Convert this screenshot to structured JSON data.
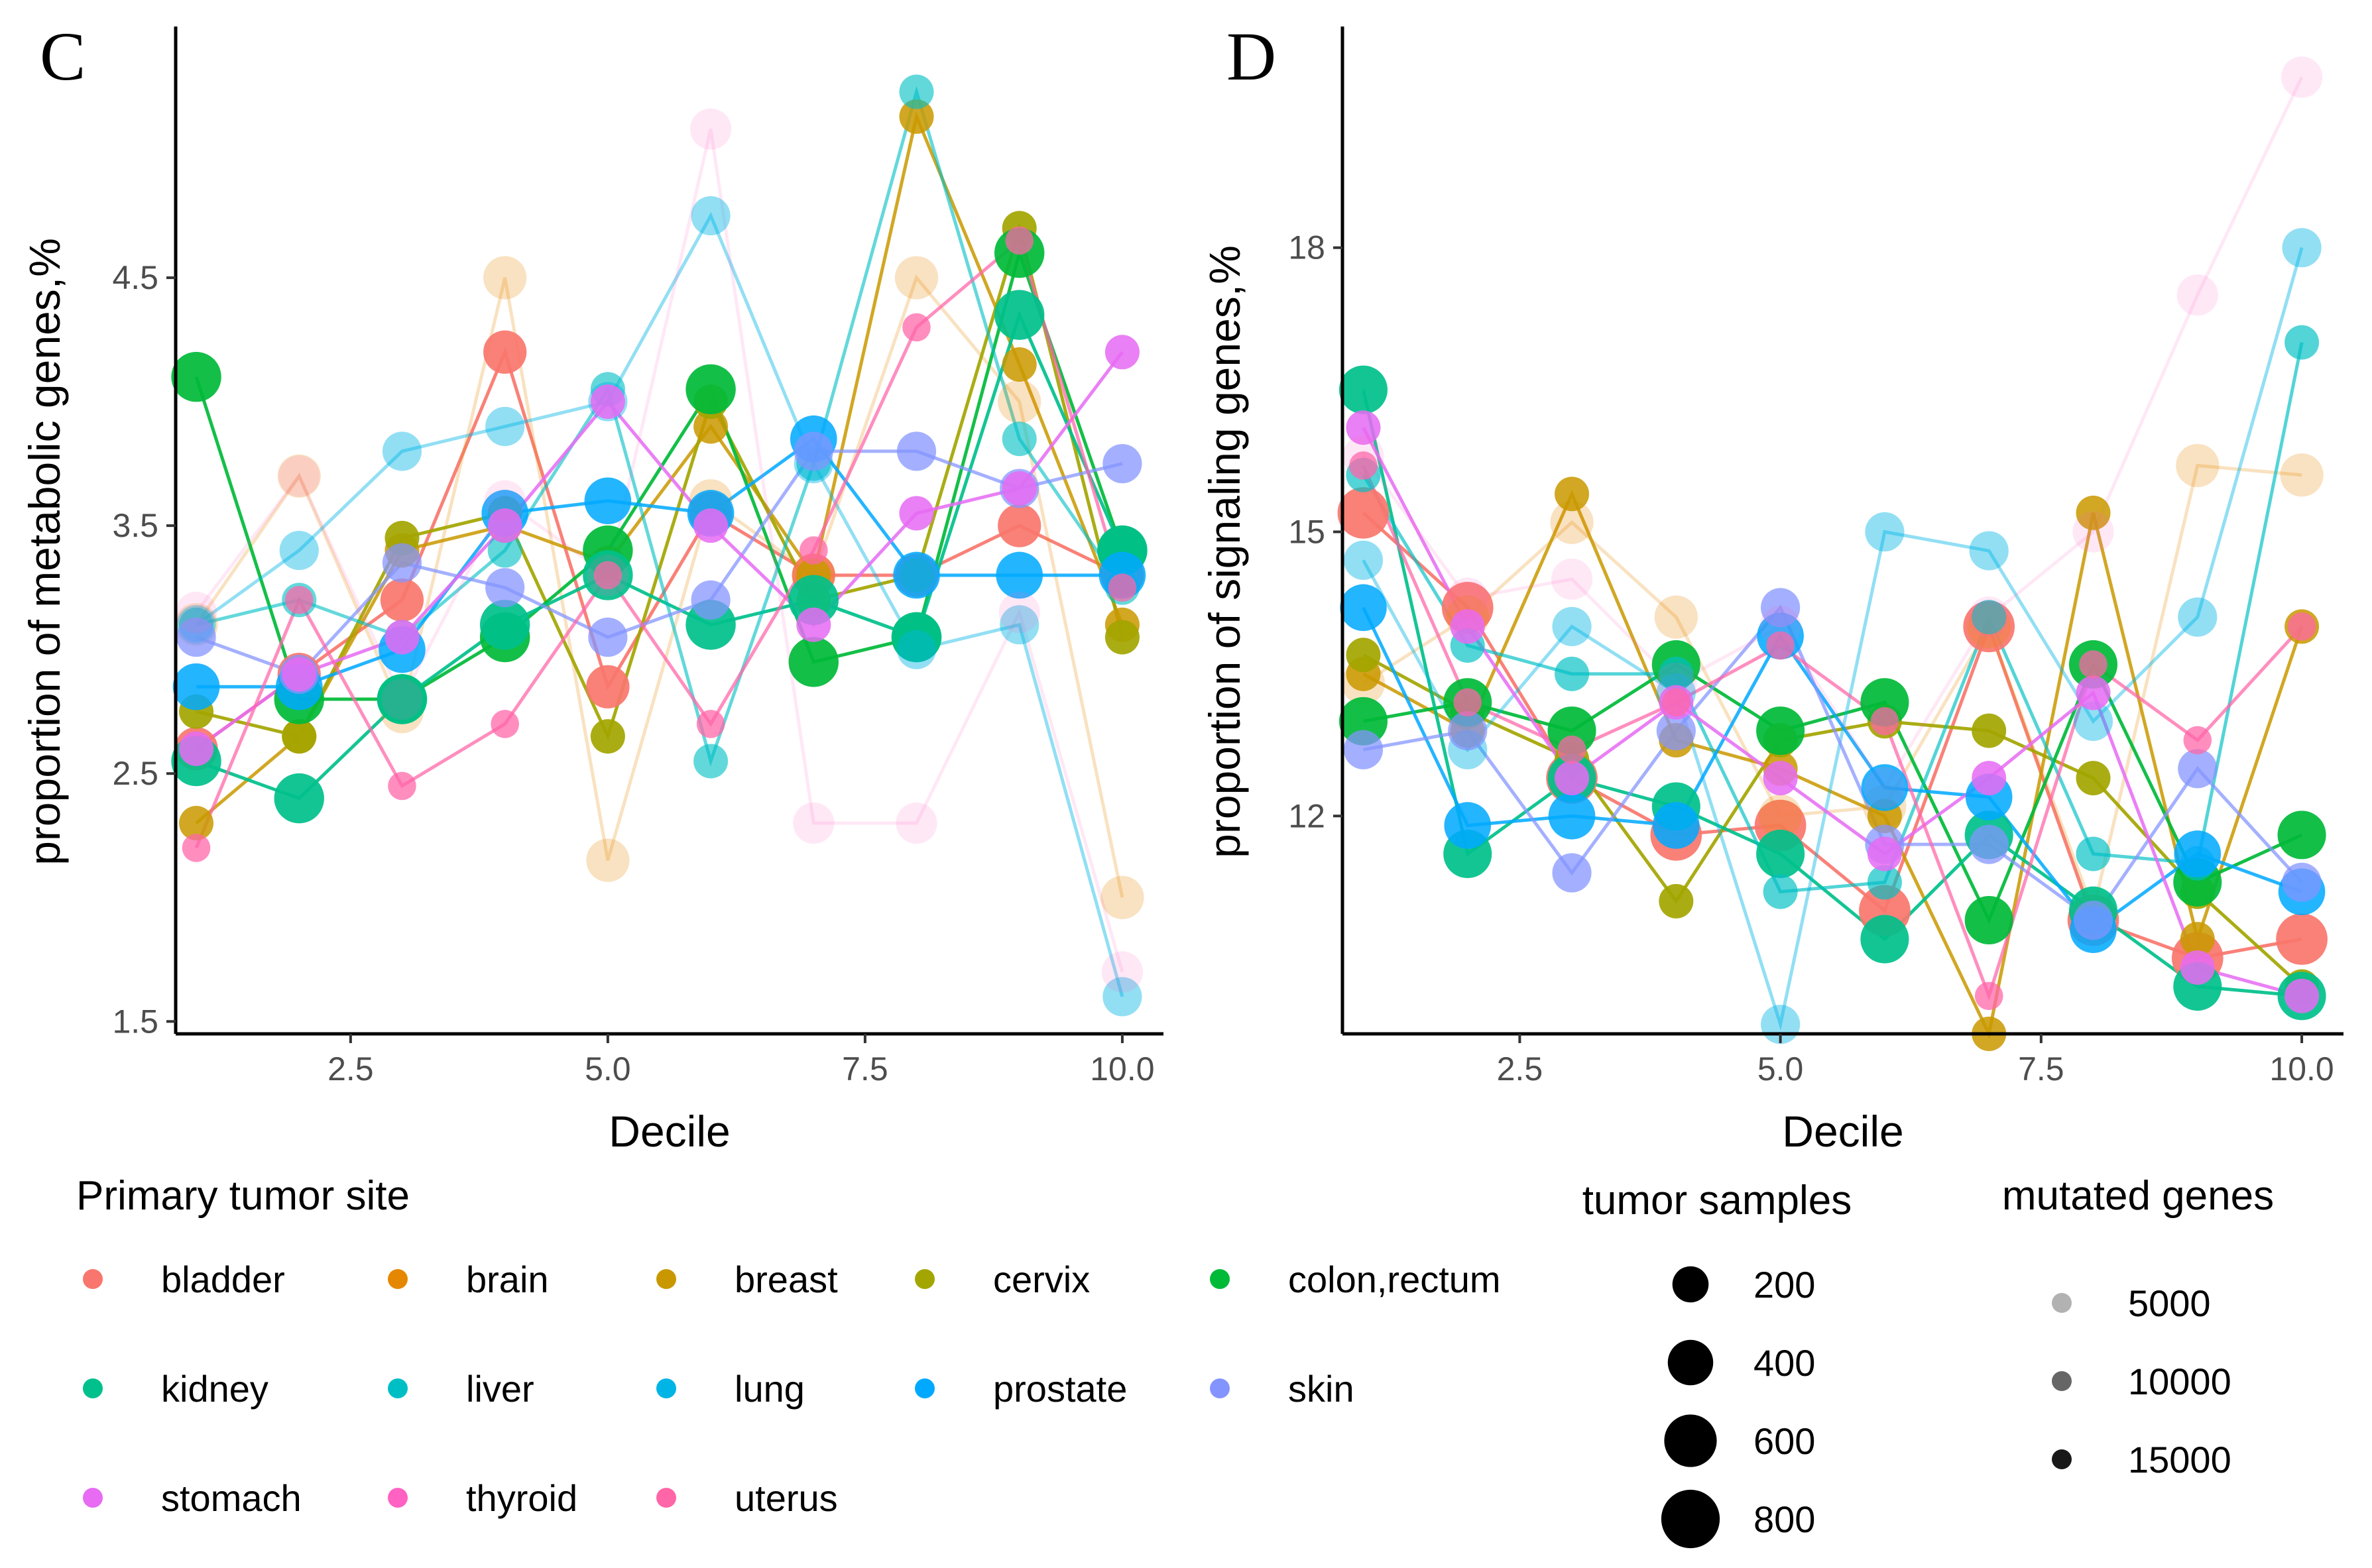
{
  "chart_data": [
    {
      "type": "scatter",
      "panel": "C",
      "xlabel": "Decile",
      "ylabel": "proportion of metabolic genes,%",
      "xlim": [
        0.8,
        10.4
      ],
      "ylim": [
        1.45,
        5.5
      ],
      "xticks": [
        2.5,
        5.0,
        7.5,
        10.0
      ],
      "xtick_labels": [
        "2.5",
        "5.0",
        "7.5",
        "10.0"
      ],
      "yticks": [
        1.5,
        2.5,
        3.5,
        4.5
      ],
      "ytick_labels": [
        "1.5",
        "2.5",
        "3.5",
        "4.5"
      ],
      "series": [
        {
          "name": "bladder",
          "values": [
            2.6,
            2.9,
            3.2,
            4.2,
            2.85,
            3.55,
            3.3,
            3.3,
            3.5,
            3.3
          ],
          "samples": 400,
          "mutated": 15000
        },
        {
          "name": "brain",
          "values": [
            3.1,
            3.7,
            2.75,
            4.5,
            2.15,
            3.6,
            3.3,
            4.5,
            4.0,
            2.0
          ],
          "samples": 400,
          "mutated": 4000
        },
        {
          "name": "breast",
          "values": [
            2.3,
            2.65,
            3.4,
            3.5,
            3.35,
            3.9,
            3.3,
            5.15,
            4.15,
            3.1
          ],
          "samples": 200,
          "mutated": 14000
        },
        {
          "name": "cervix",
          "values": [
            2.75,
            2.65,
            3.45,
            3.55,
            2.65,
            4.0,
            3.2,
            3.3,
            4.7,
            3.05
          ],
          "samples": 200,
          "mutated": 15000
        },
        {
          "name": "colon,rectum",
          "values": [
            4.1,
            2.8,
            2.8,
            3.05,
            3.4,
            4.05,
            2.95,
            3.05,
            4.6,
            3.4
          ],
          "samples": 600,
          "mutated": 15000
        },
        {
          "name": "kidney",
          "values": [
            2.55,
            2.4,
            2.8,
            3.1,
            3.3,
            3.1,
            3.2,
            3.05,
            4.35,
            3.4
          ],
          "samples": 600,
          "mutated": 15000
        },
        {
          "name": "liver",
          "values": [
            3.1,
            3.2,
            3.05,
            3.4,
            4.05,
            2.55,
            3.75,
            5.25,
            3.85,
            3.25
          ],
          "samples": 200,
          "mutated": 10000
        },
        {
          "name": "lung",
          "values": [
            3.1,
            3.4,
            3.8,
            3.9,
            4.0,
            4.75,
            3.75,
            3.0,
            3.1,
            1.6
          ],
          "samples": 300,
          "mutated": 7000
        },
        {
          "name": "prostate",
          "values": [
            2.85,
            2.85,
            3.0,
            3.55,
            3.6,
            3.55,
            3.85,
            3.3,
            3.3,
            3.3
          ],
          "samples": 500,
          "mutated": 14000
        },
        {
          "name": "skin",
          "values": [
            3.05,
            2.9,
            3.35,
            3.25,
            3.05,
            3.2,
            3.8,
            3.8,
            3.65,
            3.75
          ],
          "samples": 300,
          "mutated": 12000
        },
        {
          "name": "stomach",
          "values": [
            2.6,
            2.9,
            3.05,
            3.5,
            4.0,
            3.5,
            3.1,
            3.55,
            3.65,
            4.2
          ],
          "samples": 200,
          "mutated": 14000
        },
        {
          "name": "thyroid",
          "values": [
            3.15,
            3.7,
            2.8,
            3.6,
            3.3,
            5.1,
            2.3,
            2.3,
            3.15,
            1.7
          ],
          "samples": 350,
          "mutated": 2500
        },
        {
          "name": "uterus",
          "values": [
            2.2,
            3.2,
            2.45,
            2.7,
            3.3,
            2.7,
            3.4,
            4.3,
            4.65,
            3.25
          ],
          "samples": 100,
          "mutated": 12000
        }
      ]
    },
    {
      "type": "scatter",
      "panel": "D",
      "xlabel": "Decile",
      "ylabel": "proportion of signaling genes,%",
      "xlim": [
        0.8,
        10.4
      ],
      "ylim": [
        9.7,
        20.3
      ],
      "xticks": [
        2.5,
        5.0,
        7.5,
        10.0
      ],
      "xtick_labels": [
        "2.5",
        "5.0",
        "7.5",
        "10.0"
      ],
      "yticks": [
        12,
        15,
        18
      ],
      "ytick_labels": [
        "12",
        "15",
        "18"
      ],
      "series": [
        {
          "name": "bladder",
          "values": [
            15.2,
            14.2,
            12.4,
            11.8,
            11.9,
            11.0,
            14.0,
            10.9,
            10.5,
            10.7
          ],
          "samples": 650,
          "mutated": 15000
        },
        {
          "name": "brain",
          "values": [
            13.4,
            14.1,
            15.1,
            14.1,
            12.0,
            12.1,
            14.0,
            11.0,
            15.7,
            15.6
          ],
          "samples": 400,
          "mutated": 4000
        },
        {
          "name": "breast",
          "values": [
            13.5,
            12.9,
            15.4,
            12.8,
            12.5,
            12.0,
            9.7,
            15.2,
            10.7,
            14.0
          ],
          "samples": 200,
          "mutated": 14000
        },
        {
          "name": "cervix",
          "values": [
            13.7,
            13.1,
            12.6,
            11.1,
            12.8,
            13.0,
            12.9,
            12.4,
            11.2,
            10.2
          ],
          "samples": 200,
          "mutated": 15000
        },
        {
          "name": "colon,rectum",
          "values": [
            13.0,
            13.2,
            12.9,
            13.6,
            12.9,
            13.2,
            10.9,
            13.6,
            11.3,
            11.8
          ],
          "samples": 550,
          "mutated": 15000
        },
        {
          "name": "kidney",
          "values": [
            16.5,
            11.6,
            12.4,
            12.1,
            11.6,
            10.7,
            11.8,
            11.0,
            10.2,
            10.1
          ],
          "samples": 550,
          "mutated": 15000
        },
        {
          "name": "liver",
          "values": [
            15.6,
            13.8,
            13.5,
            13.5,
            11.2,
            11.3,
            14.1,
            11.6,
            11.5,
            17.0
          ],
          "samples": 200,
          "mutated": 11000
        },
        {
          "name": "lung",
          "values": [
            14.7,
            12.7,
            14.0,
            13.3,
            9.8,
            15.0,
            14.8,
            13.0,
            14.1,
            18.0
          ],
          "samples": 300,
          "mutated": 7000
        },
        {
          "name": "prostate",
          "values": [
            14.2,
            11.9,
            12.0,
            11.9,
            13.9,
            12.3,
            12.2,
            10.8,
            11.6,
            11.2
          ],
          "samples": 500,
          "mutated": 14000
        },
        {
          "name": "skin",
          "values": [
            12.7,
            12.9,
            11.4,
            12.9,
            14.2,
            11.7,
            11.7,
            10.9,
            12.5,
            11.3
          ],
          "samples": 300,
          "mutated": 12000
        },
        {
          "name": "stomach",
          "values": [
            16.1,
            14.0,
            12.4,
            13.2,
            12.4,
            11.6,
            12.4,
            13.3,
            10.4,
            10.1
          ],
          "samples": 200,
          "mutated": 14000
        },
        {
          "name": "thyroid",
          "values": [
            15.8,
            14.3,
            14.5,
            13.4,
            14.0,
            12.3,
            14.1,
            15.0,
            17.5,
            19.8
          ],
          "samples": 350,
          "mutated": 2500
        },
        {
          "name": "uterus",
          "values": [
            15.7,
            13.2,
            12.7,
            13.2,
            13.8,
            13.0,
            10.1,
            13.6,
            12.8,
            14.0
          ],
          "samples": 100,
          "mutated": 12000
        }
      ]
    }
  ],
  "legend": {
    "site_title": "Primary tumor site",
    "sites": [
      {
        "label": "bladder",
        "color": "#F8766D"
      },
      {
        "label": "brain",
        "color": "#E58700"
      },
      {
        "label": "breast",
        "color": "#C99800"
      },
      {
        "label": "cervix",
        "color": "#A3A500"
      },
      {
        "label": "colon,rectum",
        "color": "#00BA38"
      },
      {
        "label": "kidney",
        "color": "#00C08B"
      },
      {
        "label": "liver",
        "color": "#00BFC4"
      },
      {
        "label": "lung",
        "color": "#00B4E6"
      },
      {
        "label": "prostate",
        "color": "#00A9FF"
      },
      {
        "label": "skin",
        "color": "#8494FF"
      },
      {
        "label": "stomach",
        "color": "#E76BF3"
      },
      {
        "label": "thyroid",
        "color": "#FF62C2"
      },
      {
        "label": "uterus",
        "color": "#FF66A8"
      }
    ],
    "samples_title": "tumor samples",
    "samples": [
      {
        "label": "200",
        "value": 200
      },
      {
        "label": "400",
        "value": 400
      },
      {
        "label": "600",
        "value": 600
      },
      {
        "label": "800",
        "value": 800
      }
    ],
    "mutated_title": "mutated genes",
    "mutated": [
      {
        "label": "5000",
        "value": 5000
      },
      {
        "label": "10000",
        "value": 10000
      },
      {
        "label": "15000",
        "value": 15000
      }
    ]
  }
}
